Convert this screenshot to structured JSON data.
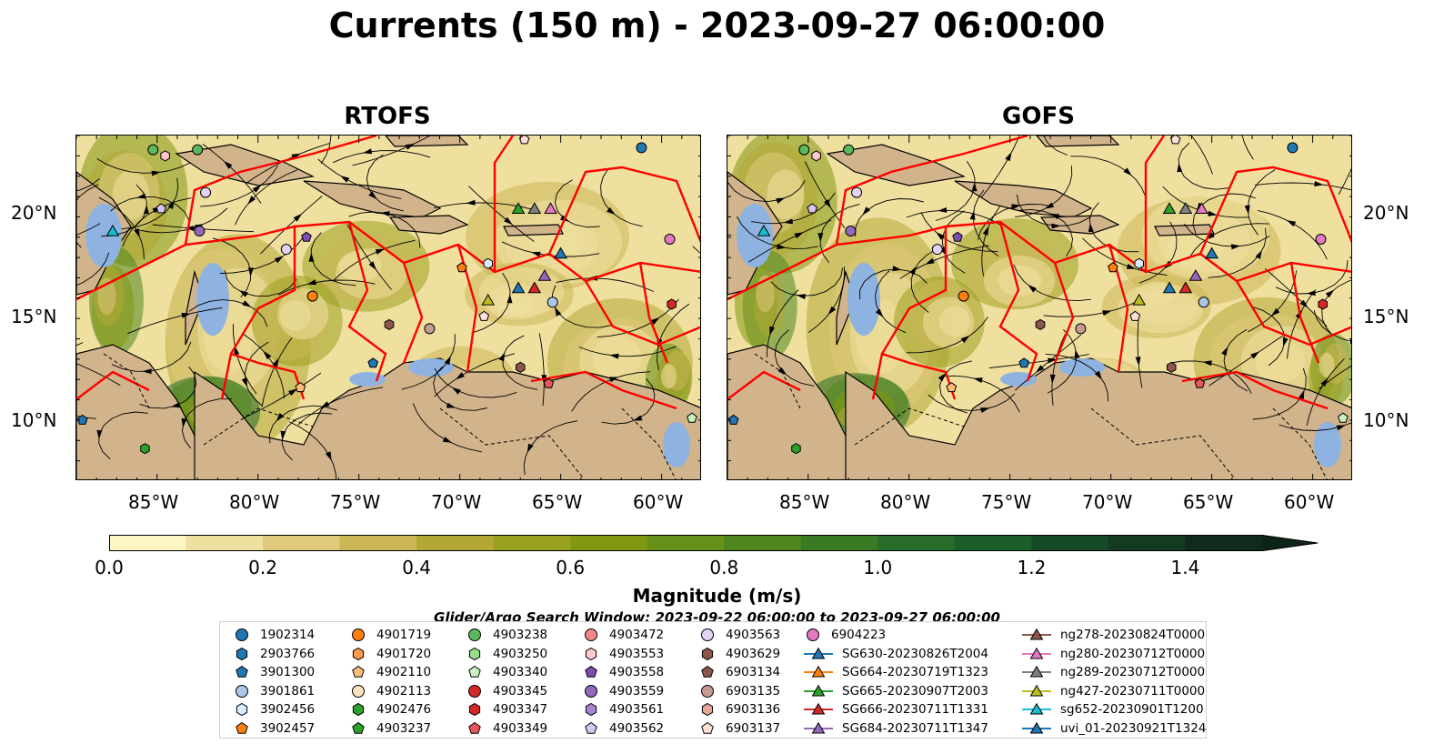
{
  "suptitle": "Currents (150 m) - 2023-09-27 06:00:00",
  "panels": [
    {
      "title": "RTOFS"
    },
    {
      "title": "GOFS"
    }
  ],
  "axes": {
    "lat_ticks": [
      "20°N",
      "15°N",
      "10°N"
    ],
    "lon_ticks": [
      "85°W",
      "80°W",
      "75°W",
      "70°W",
      "65°W",
      "60°W"
    ],
    "lon_range": [
      -89,
      -58
    ],
    "lat_range": [
      7,
      24
    ]
  },
  "colorbar": {
    "label": "Magnitude (m/s)",
    "ticks": [
      "0.0",
      "0.2",
      "0.4",
      "0.6",
      "0.8",
      "1.0",
      "1.2",
      "1.4"
    ],
    "range": [
      0,
      1.5
    ],
    "extend": "max",
    "colors": [
      "#fdf5c4",
      "#f0e0a0",
      "#dfc97c",
      "#cbb757",
      "#b3a836",
      "#9aa01f",
      "#819813",
      "#679018",
      "#4f861f",
      "#3b7a24",
      "#276c28",
      "#1b5e2a",
      "#174a26",
      "#143a22",
      "#112a1d"
    ]
  },
  "legend": {
    "title": "Glider/Argo Search Window: 2023-09-22 06:00:00 to 2023-09-27 06:00:00",
    "columns": [
      [
        {
          "label": "1902314",
          "marker": "circle",
          "color": "#1f77b4"
        },
        {
          "label": "2903766",
          "marker": "hexagon",
          "color": "#1f77b4"
        },
        {
          "label": "3901300",
          "marker": "pentagon",
          "color": "#1f77b4"
        },
        {
          "label": "3901861",
          "marker": "circle",
          "color": "#aec7e8"
        },
        {
          "label": "3902456",
          "marker": "hexagon",
          "color": "#d8ecff"
        },
        {
          "label": "3902457",
          "marker": "pentagon",
          "color": "#ff7f0e"
        }
      ],
      [
        {
          "label": "4901719",
          "marker": "circle",
          "color": "#ff7f0e"
        },
        {
          "label": "4901720",
          "marker": "hexagon",
          "color": "#ff9c4a"
        },
        {
          "label": "4902110",
          "marker": "pentagon",
          "color": "#ffbb78"
        },
        {
          "label": "4902113",
          "marker": "circle",
          "color": "#ffe1bf"
        },
        {
          "label": "4902476",
          "marker": "hexagon",
          "color": "#2ca02c"
        },
        {
          "label": "4903237",
          "marker": "pentagon",
          "color": "#2ca02c"
        }
      ],
      [
        {
          "label": "4903238",
          "marker": "circle",
          "color": "#5cb85c"
        },
        {
          "label": "4903250",
          "marker": "hexagon",
          "color": "#98df8a"
        },
        {
          "label": "4903340",
          "marker": "pentagon",
          "color": "#c9f2c0"
        },
        {
          "label": "4903345",
          "marker": "circle",
          "color": "#d62728"
        },
        {
          "label": "4903347",
          "marker": "hexagon",
          "color": "#d62728"
        },
        {
          "label": "4903349",
          "marker": "pentagon",
          "color": "#e5575a"
        }
      ],
      [
        {
          "label": "4903472",
          "marker": "circle",
          "color": "#f08a8a"
        },
        {
          "label": "4903553",
          "marker": "hexagon",
          "color": "#ffc9c9"
        },
        {
          "label": "4903558",
          "marker": "pentagon",
          "color": "#7b4fb0"
        },
        {
          "label": "4903559",
          "marker": "circle",
          "color": "#9467bd"
        },
        {
          "label": "4903561",
          "marker": "hexagon",
          "color": "#a985d0"
        },
        {
          "label": "4903562",
          "marker": "pentagon",
          "color": "#d6c6f0"
        }
      ],
      [
        {
          "label": "4903563",
          "marker": "circle",
          "color": "#e3d4f5"
        },
        {
          "label": "4903629",
          "marker": "hexagon",
          "color": "#8c564b"
        },
        {
          "label": "6903134",
          "marker": "pentagon",
          "color": "#8c564b"
        },
        {
          "label": "6903135",
          "marker": "circle",
          "color": "#c49c94"
        },
        {
          "label": "6903136",
          "marker": "hexagon",
          "color": "#e4a898"
        },
        {
          "label": "6903137",
          "marker": "pentagon",
          "color": "#fde0d8"
        }
      ],
      [
        {
          "label": "6904223",
          "marker": "circle",
          "color": "#e377c2"
        },
        {
          "label": "SG630-20230826T2004",
          "marker": "triangle-line",
          "color": "#1f77b4"
        },
        {
          "label": "SG664-20230719T1323",
          "marker": "triangle-line",
          "color": "#ff7f0e"
        },
        {
          "label": "SG665-20230907T2003",
          "marker": "triangle-line",
          "color": "#2ca02c"
        },
        {
          "label": "SG666-20230711T1331",
          "marker": "triangle-line",
          "color": "#d62728"
        },
        {
          "label": "SG684-20230711T1347",
          "marker": "triangle-line",
          "color": "#9467bd"
        }
      ],
      [
        {
          "label": "ng278-20230824T0000",
          "marker": "triangle-line",
          "color": "#8c564b"
        },
        {
          "label": "ng280-20230712T0000",
          "marker": "triangle-line",
          "color": "#e377c2"
        },
        {
          "label": "ng289-20230712T0000",
          "marker": "triangle-line",
          "color": "#7f7f7f"
        },
        {
          "label": "ng427-20230711T0000",
          "marker": "triangle-line",
          "color": "#bcbd22"
        },
        {
          "label": "sg652-20230901T1200",
          "marker": "triangle-line",
          "color": "#17becf"
        },
        {
          "label": "uvi_01-20230921T1324",
          "marker": "triangle-line",
          "color": "#1f77b4"
        }
      ]
    ]
  }
}
